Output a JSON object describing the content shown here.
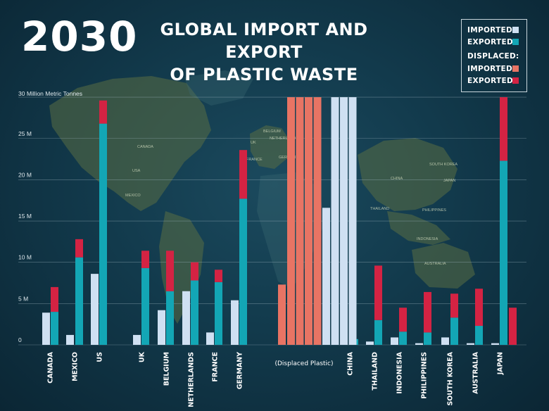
{
  "header": {
    "year": "2030",
    "title_line1": "GLOBAL IMPORT AND EXPORT",
    "title_line2": "OF PLASTIC WASTE"
  },
  "legend": {
    "imported": "IMPORTED",
    "exported": "EXPORTED",
    "displaced_heading": "DISPLACED:",
    "displaced_imported": "IMPORTED",
    "displaced_exported": "EXPORTED"
  },
  "colors": {
    "imported": "#cfe0f2",
    "exported": "#13a6b5",
    "displaced_imported": "#e87464",
    "displaced_exported": "#d42343"
  },
  "map_labels": [
    "CANADA",
    "USA",
    "MEXICO",
    "UK",
    "BELGIUM",
    "NETHERLANDS",
    "FRANCE",
    "GERMANY",
    "CHINA",
    "SOUTH KOREA",
    "JAPAN",
    "THAILAND",
    "PHILIPPINES",
    "INDONESIA",
    "AUSTRALIA"
  ],
  "chart_data": {
    "type": "bar",
    "ylabel": "30 Million Metric Tonnes",
    "ylim": [
      0,
      30
    ],
    "yticks": [
      0,
      5,
      10,
      15,
      20,
      25
    ],
    "ytick_labels": [
      "0",
      "5 M",
      "10 M",
      "15 M",
      "20 M",
      "25 M"
    ],
    "grid": true,
    "legend_position": "top-right",
    "categories": [
      "CANADA",
      "MEXICO",
      "US",
      "UK",
      "BELGIUM",
      "NETHERLANDS",
      "FRANCE",
      "GERMANY",
      "(Displaced Plastic)",
      "CHINA",
      "THAILAND",
      "INDONESIA",
      "PHILIPPINES",
      "SOUTH KOREA",
      "AUSTRALIA",
      "JAPAN"
    ],
    "series": [
      {
        "name": "IMPORTED",
        "values": [
          3.9,
          1.2,
          8.6,
          1.2,
          4.2,
          6.5,
          1.5,
          5.4,
          null,
          null,
          0.4,
          0.9,
          0.2,
          0.9,
          0.2,
          0.2
        ]
      },
      {
        "name": "EXPORTED",
        "values": [
          4.0,
          10.6,
          26.8,
          9.3,
          6.5,
          7.8,
          7.6,
          17.7,
          null,
          0.7,
          3.0,
          1.6,
          1.5,
          3.3,
          2.3,
          22.3
        ]
      },
      {
        "name": "DISPLACED: EXPORTED",
        "values": [
          3.0,
          2.2,
          2.8,
          2.1,
          4.9,
          2.2,
          1.5,
          5.9,
          null,
          null,
          6.6,
          2.9,
          4.9,
          2.9,
          4.5,
          11.5
        ]
      }
    ],
    "displaced_plastic": {
      "displaced_exported_bar": 7.3,
      "displaced_imported_bars": [
        30,
        30,
        30,
        30
      ],
      "imported_bars": [
        16.6,
        30,
        30,
        30
      ]
    },
    "japan_extra_displaced_exported": 4.5
  }
}
